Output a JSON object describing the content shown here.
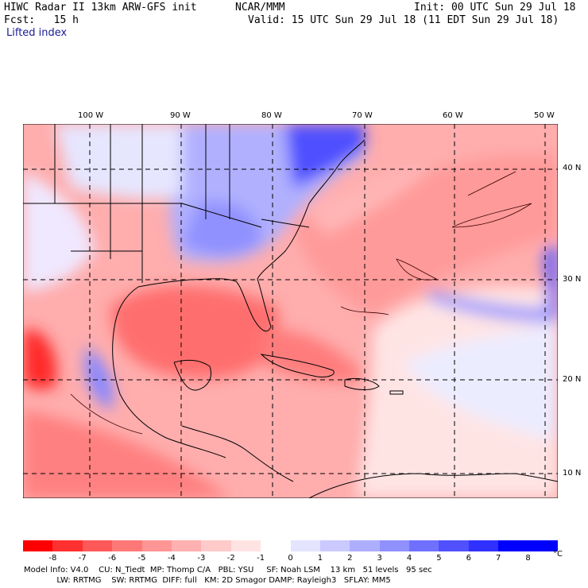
{
  "header": {
    "title": "HIWC Radar II 13km ARW-GFS init",
    "org": "NCAR/MMM",
    "init": "Init: 00 UTC Sun 29 Jul 18",
    "fcst": "Fcst:   15 h",
    "valid": "Valid: 15 UTC Sun 29 Jul 18 (11 EDT Sun 29 Jul 18)",
    "field": "Lifted index"
  },
  "map": {
    "lon_labels": [
      "100 W",
      "90 W",
      "80 W",
      "70 W",
      "60 W",
      "50 W"
    ],
    "lat_labels": [
      "40 N",
      "30 N",
      "20 N",
      "10 N"
    ],
    "region": "Eastern US, Gulf of Mexico, Caribbean, western Atlantic"
  },
  "colorbar": {
    "ticks": [
      "-8",
      "-7",
      "-6",
      "-5",
      "-4",
      "-3",
      "-2",
      "-1",
      "0",
      "1",
      "2",
      "3",
      "4",
      "5",
      "6",
      "7",
      "8"
    ],
    "unit": "°C",
    "colors": [
      "#ff0000",
      "#ff3030",
      "#ff5858",
      "#ff7878",
      "#ff9595",
      "#ffb0b0",
      "#ffcaca",
      "#ffe3e3",
      "#ffffff",
      "#e4e4ff",
      "#cacaff",
      "#aeaeff",
      "#9090ff",
      "#7070ff",
      "#5050ff",
      "#3030ff",
      "#0000ff"
    ]
  },
  "footer": {
    "line1": "Model Info: V4.0    CU: N_Tiedt  MP: Thomp C/A   PBL: YSU     SF: Noah LSM    13 km   51 levels   95 sec",
    "line2": "             LW: RRTMG    SW: RRTMG  DIFF: full   KM: 2D Smagor DAMP: Rayleigh3   SFLAY: MM5"
  }
}
